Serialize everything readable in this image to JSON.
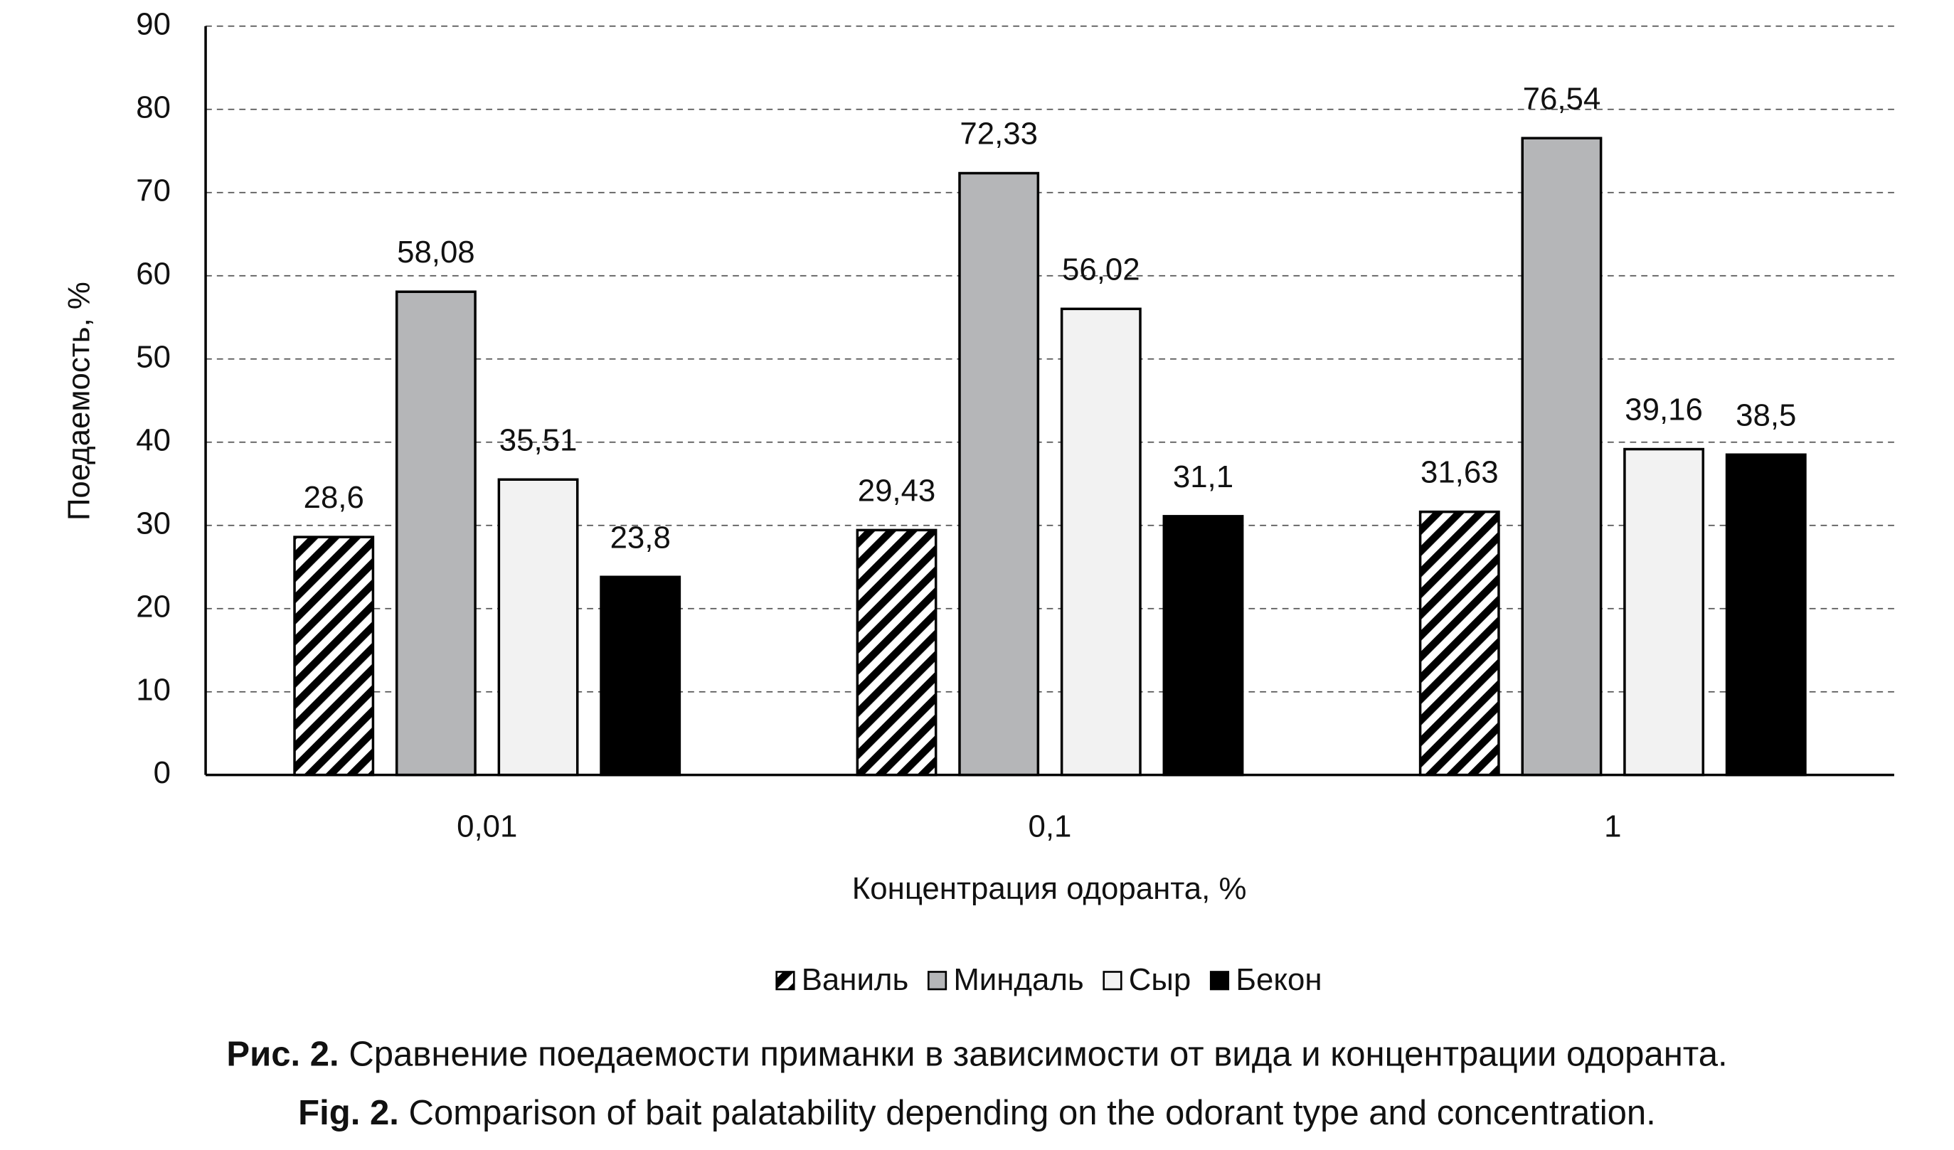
{
  "chart_data": {
    "type": "bar",
    "x_label": "Концентрация одоранта, %",
    "y_label": "Поедаемость, %",
    "categories": [
      "0,01",
      "0,1",
      "1"
    ],
    "series": [
      {
        "name": "Ваниль",
        "color": "#000000",
        "pattern": "diagonal-stripes",
        "values": [
          28.6,
          29.43,
          31.63
        ],
        "value_labels": [
          "28,6",
          "29,43",
          "31,63"
        ]
      },
      {
        "name": "Миндаль",
        "color": "#b5b6b8",
        "values": [
          58.08,
          72.33,
          76.54
        ],
        "value_labels": [
          "58,08",
          "72,33",
          "76,54"
        ]
      },
      {
        "name": "Сыр",
        "color": "#f2f2f2",
        "values": [
          35.51,
          56.02,
          39.16
        ],
        "value_labels": [
          "35,51",
          "56,02",
          "39,16"
        ]
      },
      {
        "name": "Бекон",
        "color": "#000000",
        "values": [
          23.8,
          31.1,
          38.5
        ],
        "value_labels": [
          "23,8",
          "31,1",
          "38,5"
        ]
      }
    ],
    "ylim": [
      0,
      90
    ],
    "yticks": [
      0,
      10,
      20,
      30,
      40,
      50,
      60,
      70,
      80,
      90
    ],
    "grid": true,
    "legend": "bottom"
  },
  "caption": [
    {
      "label": "Рис. 2.",
      "text": "Сравнение поедаемости приманки в зависимости от вида и концентрации одоранта."
    },
    {
      "label": "Fig. 2.",
      "text": "Comparison of bait palatability depending on the odorant type and concentration."
    }
  ]
}
